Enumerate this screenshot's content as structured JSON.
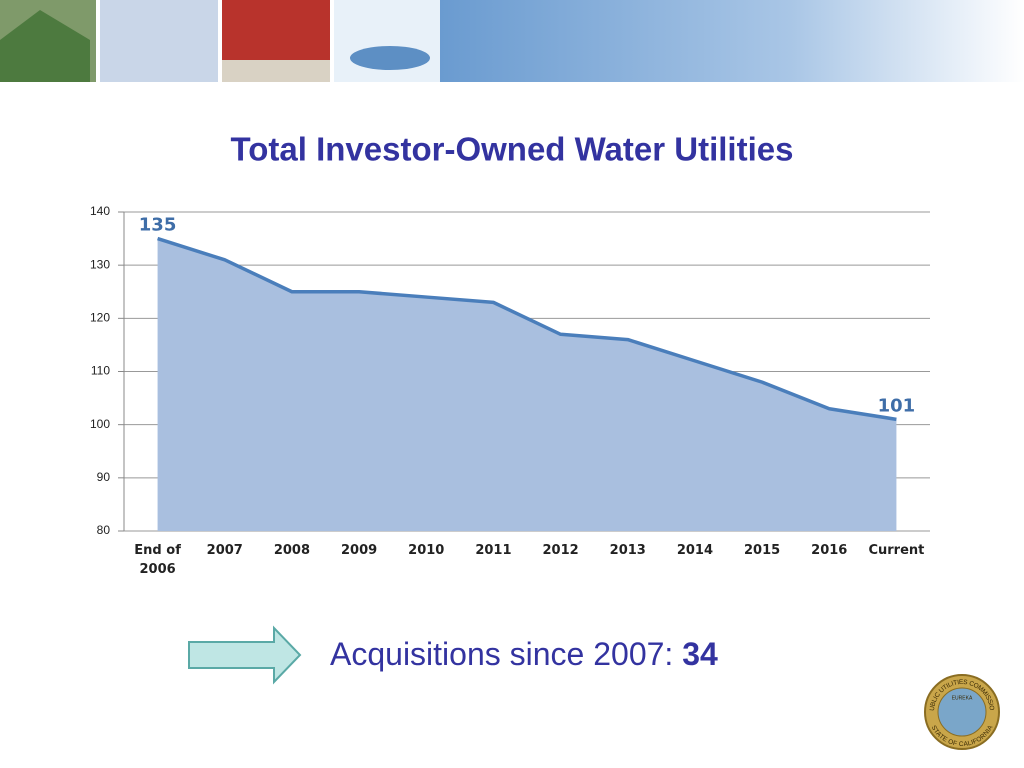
{
  "chart_data": {
    "type": "area",
    "title": "Total Investor-Owned Water Utilities",
    "categories": [
      "End of 2006",
      "2007",
      "2008",
      "2009",
      "2010",
      "2011",
      "2012",
      "2013",
      "2014",
      "2015",
      "2016",
      "Current"
    ],
    "values": [
      135,
      131,
      125,
      125,
      124,
      123,
      117,
      116,
      112,
      108,
      103,
      101
    ],
    "color": "#4a7ebb",
    "fill": "#a9bfdf",
    "ylim": [
      80,
      140
    ],
    "yticks": [
      80,
      90,
      100,
      110,
      120,
      130,
      140
    ],
    "grid": true,
    "data_labels": "first-last"
  },
  "footer": {
    "text": "Acquisitions since 2007:",
    "highlight": "34"
  },
  "seal": {
    "top": "PUBLIC UTILITIES COMMISSION",
    "bottom": "STATE OF CALIFORNIA",
    "motto": "EUREKA"
  }
}
